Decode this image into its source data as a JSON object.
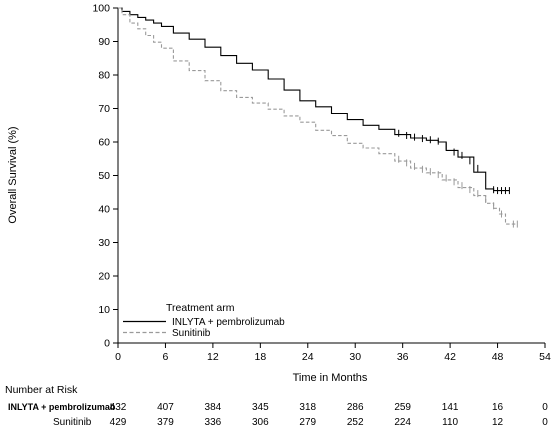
{
  "chart_data": {
    "type": "line",
    "xlabel": "Time in Months",
    "ylabel": "Overall Survival (%)",
    "xlim": [
      0,
      54
    ],
    "ylim": [
      0,
      100
    ],
    "xticks": [
      0,
      6,
      12,
      18,
      24,
      30,
      36,
      42,
      48,
      54
    ],
    "yticks": [
      0,
      10,
      20,
      30,
      40,
      50,
      60,
      70,
      80,
      90,
      100
    ],
    "legend": {
      "title": "Treatment arm",
      "placement": "lower-left",
      "entries": [
        {
          "label": "INLYTA + pembrolizumab",
          "style": "solid",
          "color": "#000000"
        },
        {
          "label": "Sunitinib",
          "style": "dashed",
          "color": "#9a9a9a"
        }
      ]
    },
    "series": [
      {
        "name": "INLYTA + pembrolizumab",
        "color": "#000000",
        "style": "solid",
        "x": [
          0,
          1,
          2,
          3,
          4,
          5,
          6,
          8,
          10,
          12,
          14,
          16,
          18,
          20,
          22,
          24,
          26,
          28,
          30,
          32,
          34,
          36,
          38,
          40,
          41,
          42,
          44,
          46,
          47,
          48,
          49.5
        ],
        "y": [
          100,
          99,
          98,
          97.2,
          96.4,
          95.5,
          94.5,
          92.5,
          90.7,
          88.3,
          85.8,
          83.5,
          81.5,
          78.8,
          75.5,
          72.3,
          70.5,
          68.5,
          66.7,
          65,
          63.8,
          62.2,
          61.2,
          60.5,
          60,
          57.5,
          55.5,
          51,
          46,
          45.5,
          45.5
        ],
        "censor_x": [
          35.5,
          36.5,
          37.5,
          38.5,
          39.5,
          40.5,
          41.5,
          42.5,
          43.5,
          44.5,
          45.5,
          47.5,
          48,
          48.5,
          49,
          49.5
        ]
      },
      {
        "name": "Sunitinib",
        "color": "#9a9a9a",
        "style": "dashed",
        "x": [
          0,
          1,
          2,
          3,
          4,
          5,
          6,
          8,
          10,
          12,
          14,
          16,
          18,
          20,
          22,
          24,
          26,
          28,
          30,
          32,
          34,
          36,
          38,
          40,
          42,
          44,
          46,
          47,
          48,
          48.5,
          49.5,
          50.5
        ],
        "y": [
          100,
          98,
          95.5,
          93.8,
          91.8,
          89.8,
          88,
          84.2,
          81.3,
          78.3,
          75.3,
          73.3,
          71.6,
          69.8,
          67.8,
          65.9,
          63.5,
          61.9,
          59.6,
          58.2,
          56.5,
          54.3,
          52.2,
          50.8,
          48.7,
          46.4,
          44,
          41.7,
          40.2,
          38.5,
          35.5,
          35.5
        ],
        "censor_x": [
          35.5,
          36.5,
          37.5,
          38.5,
          39.5,
          40.5,
          41.5,
          42.5,
          43.5,
          44.5,
          45.5,
          46.5,
          47.5,
          48.5,
          50,
          50.5
        ]
      }
    ],
    "risk_table": {
      "heading": "Number at Risk",
      "times": [
        0,
        6,
        12,
        18,
        24,
        30,
        36,
        42,
        48,
        54
      ],
      "rows": [
        {
          "label": "INLYTA + pembrolizumab",
          "values": [
            "432",
            "407",
            "384",
            "345",
            "318",
            "286",
            "259",
            "141",
            "16",
            "0"
          ]
        },
        {
          "label": "Sunitinib",
          "values": [
            "429",
            "379",
            "336",
            "306",
            "279",
            "252",
            "224",
            "110",
            "12",
            "0"
          ]
        }
      ]
    }
  }
}
